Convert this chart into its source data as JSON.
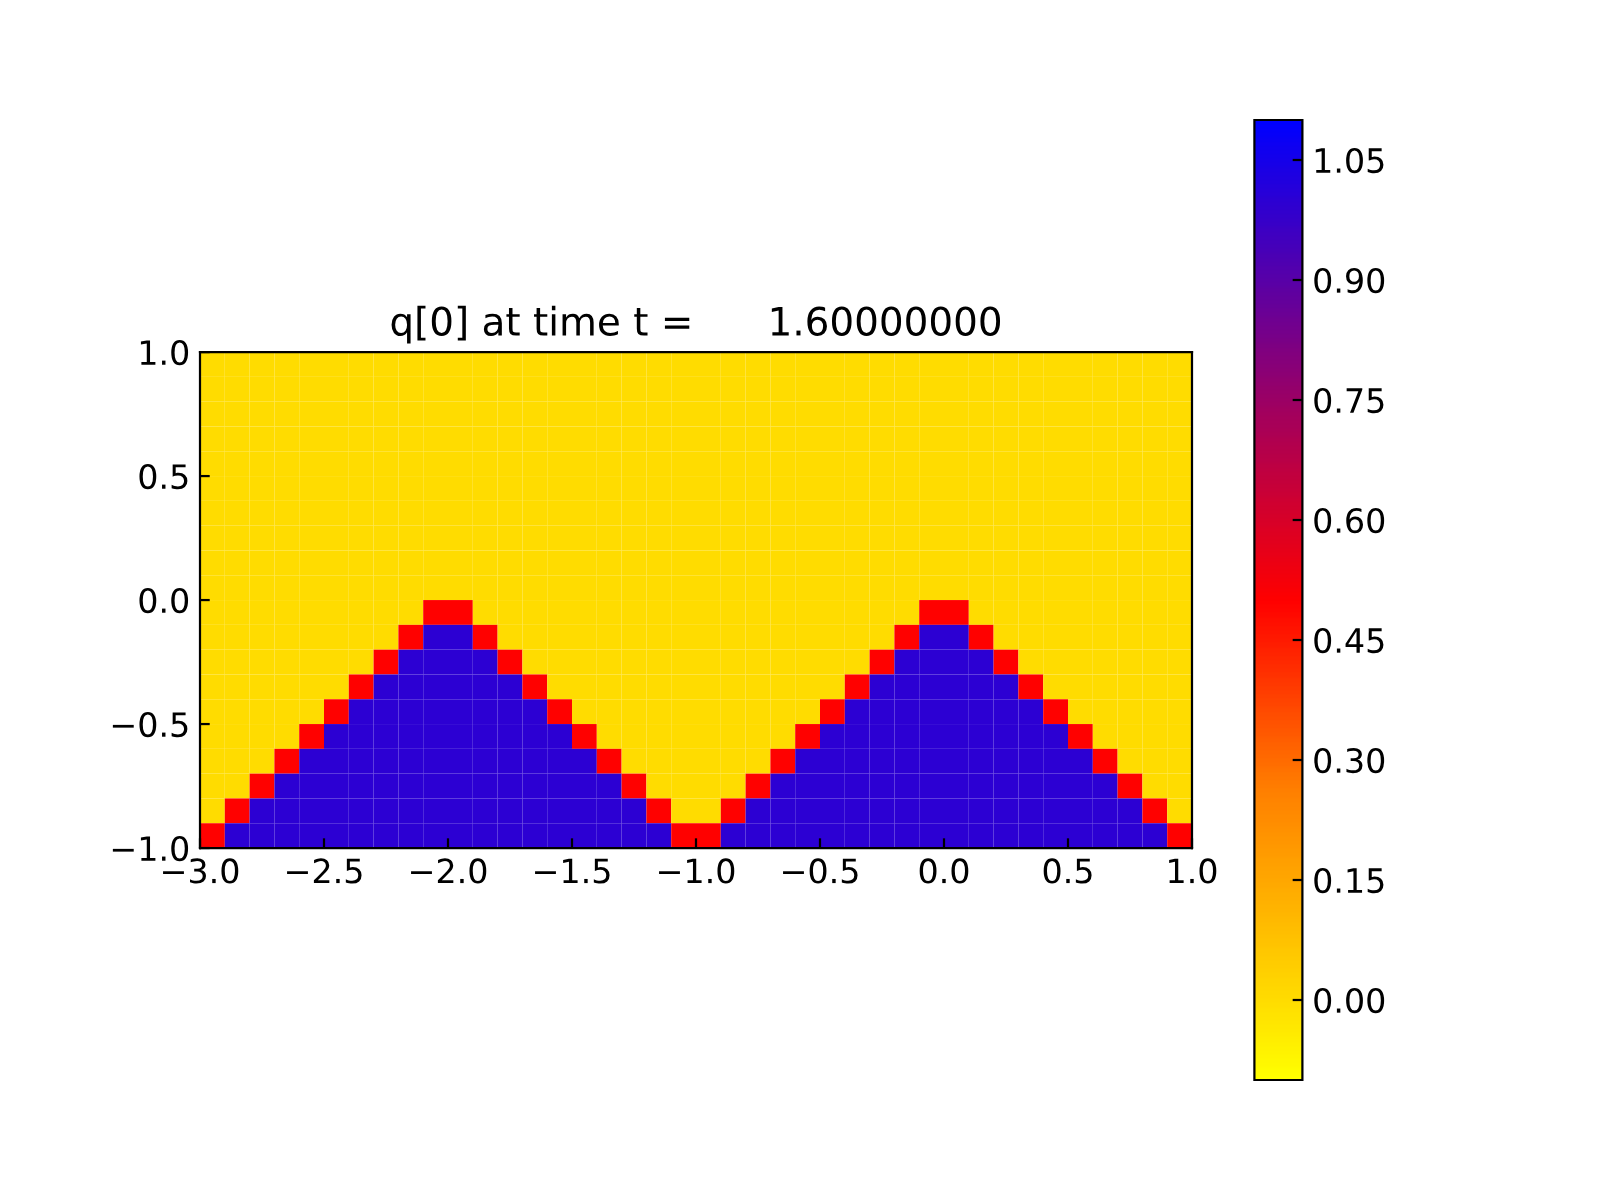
{
  "chart_data": {
    "type": "heatmap",
    "title": "q[0] at time t =      1.60000000",
    "xlim": [
      -3.0,
      1.0
    ],
    "ylim": [
      -1.0,
      1.0
    ],
    "xticks": [
      {
        "value": -3.0,
        "label": "−3.0"
      },
      {
        "value": -2.5,
        "label": "−2.5"
      },
      {
        "value": -2.0,
        "label": "−2.0"
      },
      {
        "value": -1.5,
        "label": "−1.5"
      },
      {
        "value": -1.0,
        "label": "−1.0"
      },
      {
        "value": -0.5,
        "label": "−0.5"
      },
      {
        "value": 0.0,
        "label": "0.0"
      },
      {
        "value": 0.5,
        "label": "0.5"
      },
      {
        "value": 1.0,
        "label": "1.0"
      }
    ],
    "yticks": [
      {
        "value": -1.0,
        "label": "−1.0"
      },
      {
        "value": -0.5,
        "label": "−0.5"
      },
      {
        "value": 0.0,
        "label": "0.0"
      },
      {
        "value": 0.5,
        "label": "0.5"
      },
      {
        "value": 1.0,
        "label": "1.0"
      }
    ],
    "clim": [
      -0.1,
      1.1
    ],
    "cticks": [
      {
        "value": 0.0,
        "label": "0.00"
      },
      {
        "value": 0.15,
        "label": "0.15"
      },
      {
        "value": 0.3,
        "label": "0.30"
      },
      {
        "value": 0.45,
        "label": "0.45"
      },
      {
        "value": 0.6,
        "label": "0.60"
      },
      {
        "value": 0.75,
        "label": "0.75"
      },
      {
        "value": 0.9,
        "label": "0.90"
      },
      {
        "value": 1.05,
        "label": "1.05"
      }
    ],
    "cells": [
      [
        0,
        0,
        0,
        0,
        0,
        0,
        0,
        0,
        0,
        0,
        0,
        0,
        0,
        0,
        0,
        0,
        0,
        0,
        0,
        0,
        0,
        0,
        0,
        0,
        0,
        0,
        0,
        0,
        0,
        0,
        0,
        0,
        0,
        0,
        0,
        0,
        0,
        0,
        0,
        0
      ],
      [
        0,
        0,
        0,
        0,
        0,
        0,
        0,
        0,
        0,
        0,
        0,
        0,
        0,
        0,
        0,
        0,
        0,
        0,
        0,
        0,
        0,
        0,
        0,
        0,
        0,
        0,
        0,
        0,
        0,
        0,
        0,
        0,
        0,
        0,
        0,
        0,
        0,
        0,
        0,
        0
      ],
      [
        0,
        0,
        0,
        0,
        0,
        0,
        0,
        0,
        0,
        0,
        0,
        0,
        0,
        0,
        0,
        0,
        0,
        0,
        0,
        0,
        0,
        0,
        0,
        0,
        0,
        0,
        0,
        0,
        0,
        0,
        0,
        0,
        0,
        0,
        0,
        0,
        0,
        0,
        0,
        0
      ],
      [
        0,
        0,
        0,
        0,
        0,
        0,
        0,
        0,
        0,
        0,
        0,
        0,
        0,
        0,
        0,
        0,
        0,
        0,
        0,
        0,
        0,
        0,
        0,
        0,
        0,
        0,
        0,
        0,
        0,
        0,
        0,
        0,
        0,
        0,
        0,
        0,
        0,
        0,
        0,
        0
      ],
      [
        0,
        0,
        0,
        0,
        0,
        0,
        0,
        0,
        0,
        0,
        0,
        0,
        0,
        0,
        0,
        0,
        0,
        0,
        0,
        0,
        0,
        0,
        0,
        0,
        0,
        0,
        0,
        0,
        0,
        0,
        0,
        0,
        0,
        0,
        0,
        0,
        0,
        0,
        0,
        0
      ],
      [
        0,
        0,
        0,
        0,
        0,
        0,
        0,
        0,
        0,
        0,
        0,
        0,
        0,
        0,
        0,
        0,
        0,
        0,
        0,
        0,
        0,
        0,
        0,
        0,
        0,
        0,
        0,
        0,
        0,
        0,
        0,
        0,
        0,
        0,
        0,
        0,
        0,
        0,
        0,
        0
      ],
      [
        0,
        0,
        0,
        0,
        0,
        0,
        0,
        0,
        0,
        0,
        0,
        0,
        0,
        0,
        0,
        0,
        0,
        0,
        0,
        0,
        0,
        0,
        0,
        0,
        0,
        0,
        0,
        0,
        0,
        0,
        0,
        0,
        0,
        0,
        0,
        0,
        0,
        0,
        0,
        0
      ],
      [
        0,
        0,
        0,
        0,
        0,
        0,
        0,
        0,
        0,
        0,
        0,
        0,
        0,
        0,
        0,
        0,
        0,
        0,
        0,
        0,
        0,
        0,
        0,
        0,
        0,
        0,
        0,
        0,
        0,
        0,
        0,
        0,
        0,
        0,
        0,
        0,
        0,
        0,
        0,
        0
      ],
      [
        0,
        0,
        0,
        0,
        0,
        0,
        0,
        0,
        0,
        0,
        0,
        0,
        0,
        0,
        0,
        0,
        0,
        0,
        0,
        0,
        0,
        0,
        0,
        0,
        0,
        0,
        0,
        0,
        0,
        0,
        0,
        0,
        0,
        0,
        0,
        0,
        0,
        0,
        0,
        0
      ],
      [
        0,
        0,
        0,
        0,
        0,
        0,
        0,
        0,
        0,
        0,
        0,
        0,
        0,
        0,
        0,
        0,
        0,
        0,
        0,
        0,
        0,
        0,
        0,
        0,
        0,
        0,
        0,
        0,
        0,
        0,
        0,
        0,
        0,
        0,
        0,
        0,
        0,
        0,
        0,
        0
      ],
      [
        0,
        0,
        0,
        0,
        0,
        0,
        0,
        0,
        0,
        0.5,
        0.5,
        0,
        0,
        0,
        0,
        0,
        0,
        0,
        0,
        0,
        0,
        0,
        0,
        0,
        0,
        0,
        0,
        0,
        0,
        0.5,
        0.5,
        0,
        0,
        0,
        0,
        0,
        0,
        0,
        0,
        0
      ],
      [
        0,
        0,
        0,
        0,
        0,
        0,
        0,
        0,
        0.5,
        1,
        1,
        0.5,
        0,
        0,
        0,
        0,
        0,
        0,
        0,
        0,
        0,
        0,
        0,
        0,
        0,
        0,
        0,
        0,
        0.5,
        1,
        1,
        0.5,
        0,
        0,
        0,
        0,
        0,
        0,
        0,
        0
      ],
      [
        0,
        0,
        0,
        0,
        0,
        0,
        0,
        0.5,
        1,
        1,
        1,
        1,
        0.5,
        0,
        0,
        0,
        0,
        0,
        0,
        0,
        0,
        0,
        0,
        0,
        0,
        0,
        0,
        0.5,
        1,
        1,
        1,
        1,
        0.5,
        0,
        0,
        0,
        0,
        0,
        0,
        0
      ],
      [
        0,
        0,
        0,
        0,
        0,
        0,
        0.5,
        1,
        1,
        1,
        1,
        1,
        1,
        0.5,
        0,
        0,
        0,
        0,
        0,
        0,
        0,
        0,
        0,
        0,
        0,
        0,
        0.5,
        1,
        1,
        1,
        1,
        1,
        1,
        0.5,
        0,
        0,
        0,
        0,
        0,
        0
      ],
      [
        0,
        0,
        0,
        0,
        0,
        0.5,
        1,
        1,
        1,
        1,
        1,
        1,
        1,
        1,
        0.5,
        0,
        0,
        0,
        0,
        0,
        0,
        0,
        0,
        0,
        0,
        0.5,
        1,
        1,
        1,
        1,
        1,
        1,
        1,
        1,
        0.5,
        0,
        0,
        0,
        0,
        0
      ],
      [
        0,
        0,
        0,
        0,
        0.5,
        1,
        1,
        1,
        1,
        1,
        1,
        1,
        1,
        1,
        1,
        0.5,
        0,
        0,
        0,
        0,
        0,
        0,
        0,
        0,
        0.5,
        1,
        1,
        1,
        1,
        1,
        1,
        1,
        1,
        1,
        1,
        0.5,
        0,
        0,
        0,
        0
      ],
      [
        0,
        0,
        0,
        0.5,
        1,
        1,
        1,
        1,
        1,
        1,
        1,
        1,
        1,
        1,
        1,
        1,
        0.5,
        0,
        0,
        0,
        0,
        0,
        0,
        0.5,
        1,
        1,
        1,
        1,
        1,
        1,
        1,
        1,
        1,
        1,
        1,
        1,
        0.5,
        0,
        0,
        0
      ],
      [
        0,
        0,
        0.5,
        1,
        1,
        1,
        1,
        1,
        1,
        1,
        1,
        1,
        1,
        1,
        1,
        1,
        1,
        0.5,
        0,
        0,
        0,
        0,
        0.5,
        1,
        1,
        1,
        1,
        1,
        1,
        1,
        1,
        1,
        1,
        1,
        1,
        1,
        1,
        0.5,
        0,
        0
      ],
      [
        0,
        0.5,
        1,
        1,
        1,
        1,
        1,
        1,
        1,
        1,
        1,
        1,
        1,
        1,
        1,
        1,
        1,
        1,
        0.5,
        0,
        0,
        0.5,
        1,
        1,
        1,
        1,
        1,
        1,
        1,
        1,
        1,
        1,
        1,
        1,
        1,
        1,
        1,
        1,
        0.5,
        0
      ],
      [
        0.5,
        1,
        1,
        1,
        1,
        1,
        1,
        1,
        1,
        1,
        1,
        1,
        1,
        1,
        1,
        1,
        1,
        1,
        1,
        0.5,
        0.5,
        1,
        1,
        1,
        1,
        1,
        1,
        1,
        1,
        1,
        1,
        1,
        1,
        1,
        1,
        1,
        1,
        1,
        1,
        0.5
      ]
    ]
  }
}
